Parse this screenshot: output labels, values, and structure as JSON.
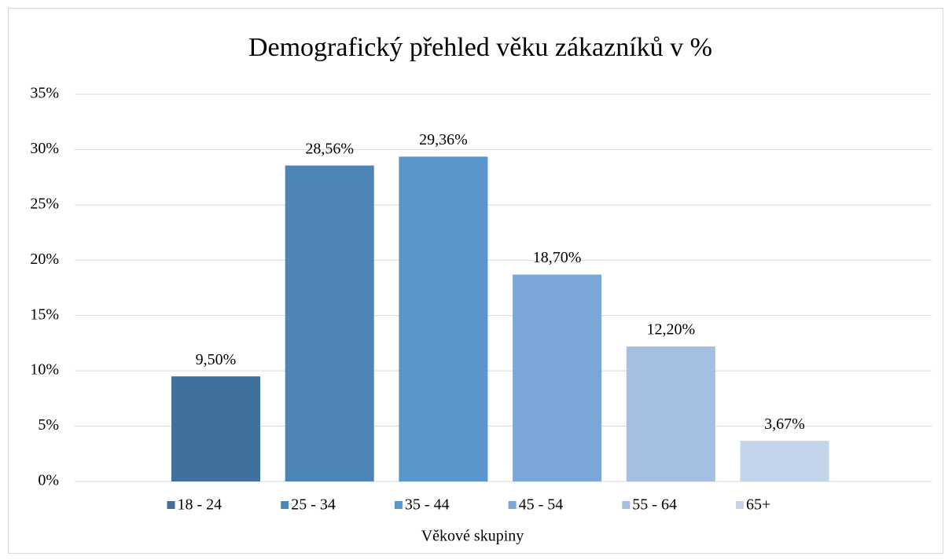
{
  "chart_data": {
    "type": "bar",
    "title": "Demografický přehled věku zákazníků v %",
    "x_label": "Věkové skupiny",
    "categories": [
      "18 - 24",
      "25 - 34",
      "35 - 44",
      "45 - 54",
      "55 - 64",
      "65+"
    ],
    "values": [
      9.5,
      28.56,
      29.36,
      18.7,
      12.2,
      3.67
    ],
    "value_labels": [
      "9,50%",
      "28,56%",
      "29,36%",
      "18,70%",
      "12,20%",
      "3,67%"
    ],
    "colors": [
      "#41709c",
      "#4e85b8",
      "#5996cc",
      "#7ba7d8",
      "#a5bfe3",
      "#c4d5eb"
    ],
    "ylim": [
      0,
      35
    ],
    "yticks": [
      {
        "value": 0,
        "label": "0%"
      },
      {
        "value": 5,
        "label": "5%"
      },
      {
        "value": 10,
        "label": "10%"
      },
      {
        "value": 15,
        "label": "15%"
      },
      {
        "value": 20,
        "label": "20%"
      },
      {
        "value": 25,
        "label": "25%"
      },
      {
        "value": 30,
        "label": "30%"
      },
      {
        "value": 35,
        "label": "35%"
      }
    ],
    "grid": true,
    "legend": "bottom"
  }
}
